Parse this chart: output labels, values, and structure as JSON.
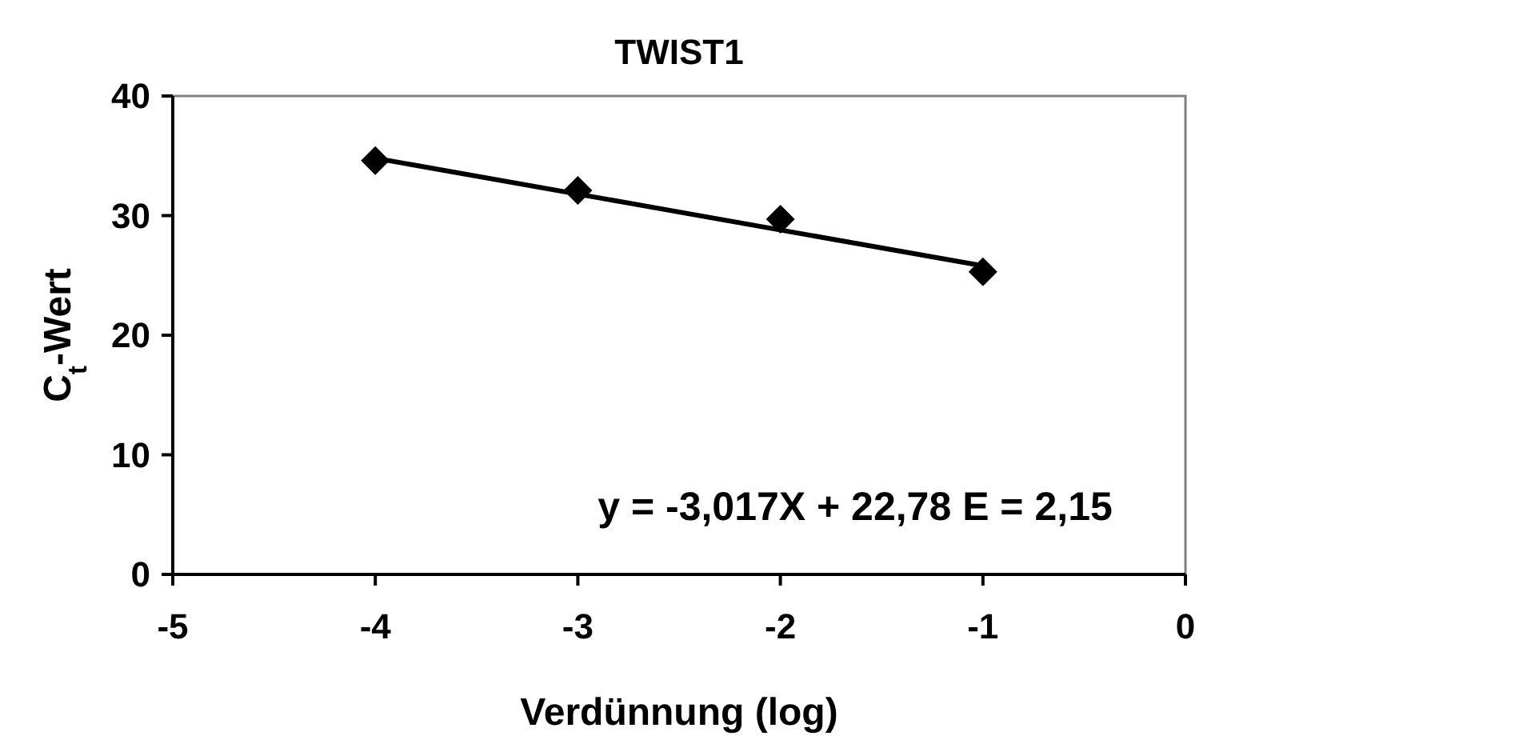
{
  "chart_data": {
    "type": "scatter",
    "title": "TWIST1",
    "xlabel": "Verdünnung (log)",
    "ylabel": "C$_{t}$-Wert",
    "xlim": [
      -5,
      0
    ],
    "xticks": [
      -5,
      -4,
      -3,
      -2,
      -1,
      0
    ],
    "ylim": [
      0,
      40
    ],
    "yticks": [
      0,
      10,
      20,
      30,
      40
    ],
    "grid": false,
    "marker": "diamond",
    "series": [
      {
        "color": "#000000",
        "x": [
          -4,
          -3,
          -2,
          -1
        ],
        "values": [
          34.6,
          32.1,
          29.7,
          25.3
        ]
      },
      {
        "type": "line",
        "color": "#000000",
        "marker": "none",
        "line_style": "solid",
        "x": [
          -4,
          -1
        ],
        "values": [
          34.8,
          25.8
        ]
      }
    ],
    "annotations": [
      "y = -3,017X + 22,78 E = 2,15"
    ]
  }
}
